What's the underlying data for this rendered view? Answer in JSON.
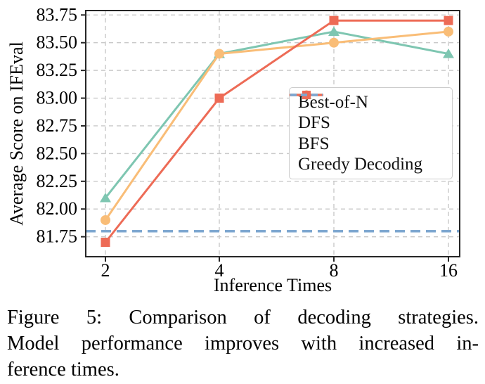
{
  "chart_data": {
    "type": "line",
    "title": "",
    "xlabel": "Inference Times",
    "ylabel": "Average Score on IFEval",
    "x": [
      2,
      4,
      8,
      16
    ],
    "x_tick_labels": [
      "2",
      "4",
      "8",
      "16"
    ],
    "x_scale": "log2",
    "yticks": [
      81.75,
      82.0,
      82.25,
      82.5,
      82.75,
      83.0,
      83.25,
      83.5,
      83.75
    ],
    "ylim": [
      81.57,
      83.79
    ],
    "grid": true,
    "legend_position": "inside center-right",
    "series": [
      {
        "name": "Best-of-N",
        "marker": "triangle",
        "color": "#7ec6b1",
        "values": [
          82.1,
          83.4,
          83.6,
          83.4
        ]
      },
      {
        "name": "DFS",
        "marker": "circle",
        "color": "#f9bd77",
        "values": [
          81.9,
          83.4,
          83.5,
          83.6
        ]
      },
      {
        "name": "BFS",
        "marker": "square",
        "color": "#ed6b56",
        "values": [
          81.7,
          83.0,
          83.7,
          83.7
        ]
      }
    ],
    "reference_line": {
      "name": "Greedy Decoding",
      "color": "#7ea7d0",
      "style": "dashed",
      "value": 81.8
    },
    "colors": {
      "grid": "#c9c9c9",
      "axis": "#262626",
      "tick_text": "#000000"
    }
  },
  "caption": {
    "lines": [
      "Figure 5: Comparison of decoding strategies.",
      "Model performance improves with increased in-",
      "ference times."
    ]
  }
}
